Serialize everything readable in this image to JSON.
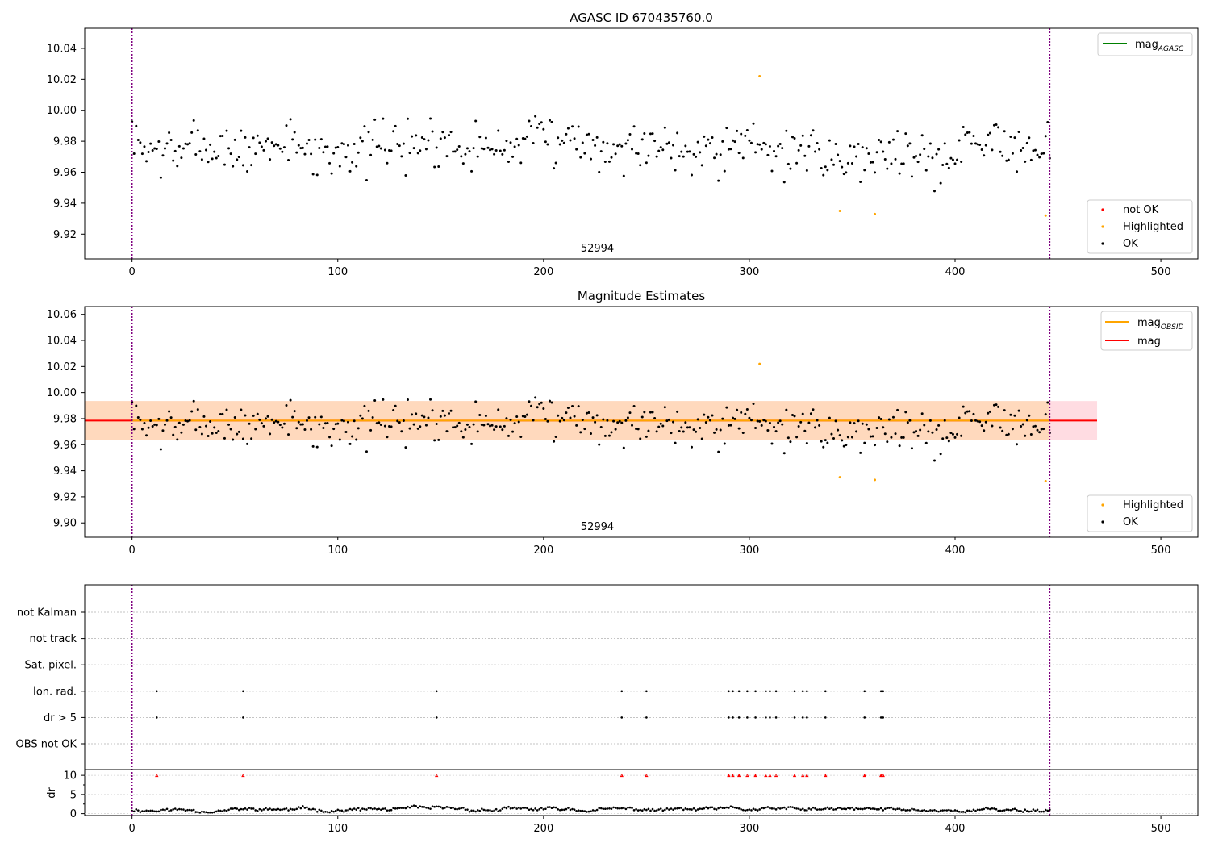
{
  "chart_data": [
    {
      "type": "scatter",
      "title": "AGASC ID 670435760.0",
      "xlim": [
        -23,
        518
      ],
      "ylim": [
        9.904,
        10.053
      ],
      "xticks": [
        0,
        100,
        200,
        300,
        400,
        500
      ],
      "yticks": [
        9.92,
        9.94,
        9.96,
        9.98,
        10.0,
        10.02,
        10.04
      ],
      "ytick_labels": [
        "9.92",
        "9.94",
        "9.96",
        "9.98",
        "10.00",
        "10.02",
        "10.04"
      ],
      "vlines": [
        0,
        446
      ],
      "vline_color": "#800080",
      "obsid_label": {
        "text": "52994",
        "x": 223
      },
      "legend_lines": [
        {
          "name": "mag",
          "sub": "AGASC",
          "color": "#008000"
        }
      ],
      "legend_markers": [
        {
          "name": "not OK",
          "color": "#ff0000"
        },
        {
          "name": "Highlighted",
          "color": "#ffa500"
        },
        {
          "name": "OK",
          "color": "#000000"
        }
      ],
      "highlighted_points": [
        [
          305,
          10.022
        ],
        [
          344,
          9.935
        ],
        [
          361,
          9.933
        ],
        [
          444,
          9.932
        ]
      ],
      "series_seed": 7,
      "series_count": 447
    },
    {
      "type": "scatter",
      "title": "Magnitude Estimates",
      "xlim": [
        -23,
        518
      ],
      "ylim": [
        9.889,
        10.066
      ],
      "xticks": [
        0,
        100,
        200,
        300,
        400,
        500
      ],
      "yticks": [
        9.9,
        9.92,
        9.94,
        9.96,
        9.98,
        10.0,
        10.02,
        10.04,
        10.06
      ],
      "ytick_labels": [
        "9.90",
        "9.92",
        "9.94",
        "9.96",
        "9.98",
        "10.00",
        "10.02",
        "10.04",
        "10.06"
      ],
      "vlines": [
        0,
        446
      ],
      "vline_color": "#800080",
      "obsid_label": {
        "text": "52994",
        "x": 223
      },
      "mag_line": {
        "value": 9.9785,
        "x_end": 469,
        "color": "#ff0000"
      },
      "mag_obsid_line": {
        "value": 9.9785,
        "x_end": 446,
        "color": "#ffa500"
      },
      "band_mag": {
        "low": 9.9635,
        "high": 9.9935,
        "x_end": 469,
        "color": "#ffc0cb"
      },
      "band_obsid": {
        "low": 9.9635,
        "high": 9.9935,
        "x_end": 446,
        "color": "#ffd8b0"
      },
      "legend_lines": [
        {
          "name": "mag",
          "sub": "OBSID",
          "color": "#ffa500"
        },
        {
          "name": "mag",
          "sub": "",
          "color": "#ff0000"
        }
      ],
      "legend_markers": [
        {
          "name": "Highlighted",
          "color": "#ffa500"
        },
        {
          "name": "OK",
          "color": "#000000"
        }
      ],
      "highlighted_points": [
        [
          305,
          10.022
        ],
        [
          344,
          9.935
        ],
        [
          361,
          9.933
        ],
        [
          444,
          9.932
        ]
      ],
      "series_seed": 7,
      "series_count": 447
    },
    {
      "type": "scatter",
      "title": "",
      "xlim": [
        -23,
        518
      ],
      "xticks": [
        0,
        100,
        200,
        300,
        400,
        500
      ],
      "vlines": [
        0,
        446
      ],
      "vline_color": "#800080",
      "flag_categories": [
        "not Kalman",
        "not track",
        "Sat. pixel.",
        "Ion. rad.",
        "dr > 5",
        "OBS not OK"
      ],
      "flag_events": {
        "Ion. rad.": [
          12,
          54,
          148,
          238,
          250,
          290,
          292,
          295,
          299,
          303,
          308,
          310,
          313,
          322,
          326,
          328,
          337,
          356,
          364,
          365
        ],
        "dr > 5": [
          12,
          54,
          148,
          238,
          250,
          290,
          292,
          295,
          299,
          303,
          308,
          310,
          313,
          322,
          326,
          328,
          337,
          356,
          364,
          365
        ]
      },
      "dr_panel": {
        "ylabel": "dr",
        "ylim": [
          -0.5,
          11.5
        ],
        "yticks": [
          0,
          5,
          10
        ],
        "ytick_labels": [
          "0",
          "5",
          "10"
        ],
        "marker_level": 10,
        "marker_color": "#ff0000",
        "marker_x": [
          12,
          54,
          148,
          238,
          250,
          290,
          292,
          295,
          299,
          303,
          308,
          310,
          313,
          322,
          326,
          328,
          337,
          356,
          364,
          365
        ],
        "base_series_count": 447
      }
    }
  ]
}
